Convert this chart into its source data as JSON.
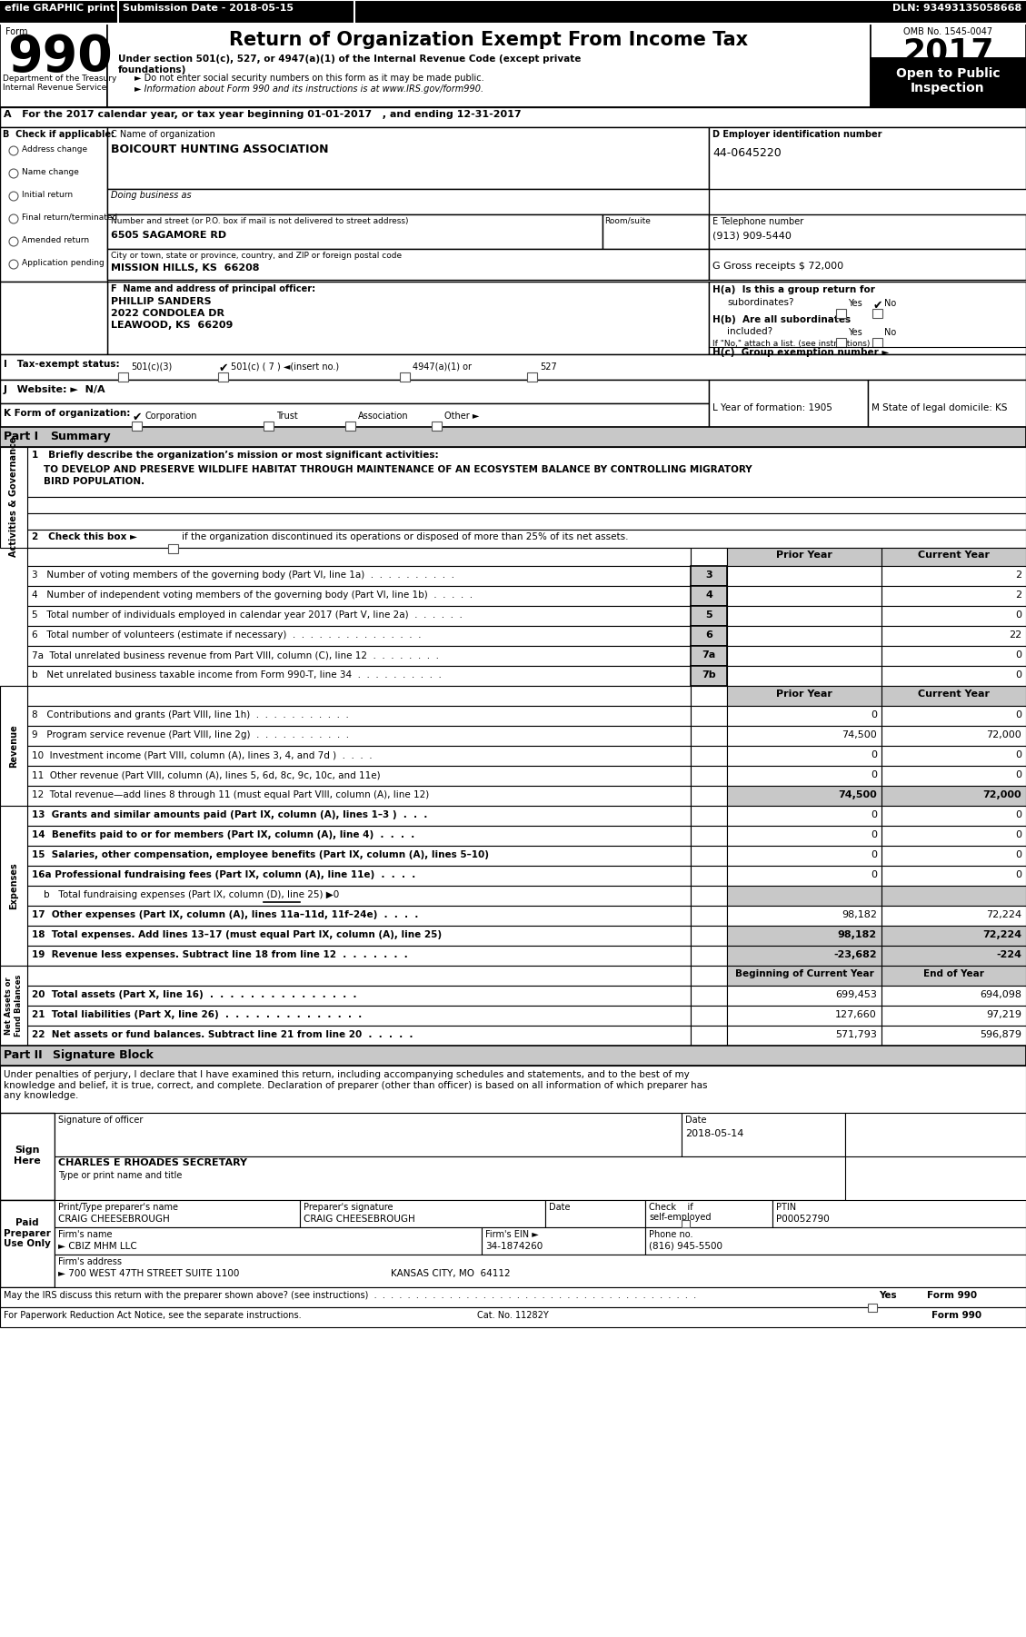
{
  "header_bar_text": [
    "efile GRAPHIC print",
    "Submission Date - 2018-05-15",
    "DLN: 93493135058668"
  ],
  "title": "Return of Organization Exempt From Income Tax",
  "omb": "OMB No. 1545-0047",
  "year": "2017",
  "open_to_public": "Open to Public\nInspection",
  "subtitle1": "Under section 501(c), 527, or 4947(a)(1) of the Internal Revenue Code (except private\nfoundations)",
  "subtitle2": "► Do not enter social security numbers on this form as it may be made public.",
  "subtitle3": "► Information about Form 990 and its instructions is at www.IRS.gov/form990.",
  "dept": "Department of the Treasury\nInternal Revenue Service",
  "section_a": "A   For the 2017 calendar year, or tax year beginning 01-01-2017   , and ending 12-31-2017",
  "org_name_label": "C Name of organization",
  "org_name": "BOICOURT HUNTING ASSOCIATION",
  "ein_label": "D Employer identification number",
  "ein": "44-0645220",
  "dba_label": "Doing business as",
  "address_label": "Number and street (or P.O. box if mail is not delivered to street address)",
  "room_label": "Room/suite",
  "address": "6505 SAGAMORE RD",
  "city_label": "City or town, state or province, country, and ZIP or foreign postal code",
  "city": "MISSION HILLS, KS  66208",
  "phone_label": "E Telephone number",
  "phone": "(913) 909-5440",
  "gross_label": "G Gross receipts $ 72,000",
  "principal_label": "F  Name and address of principal officer:",
  "principal_name": "PHILLIP SANDERS",
  "principal_addr1": "2022 CONDOLEA DR",
  "principal_addr2": "LEAWOOD, KS  66209",
  "check_applicable": "B  Check if applicable:",
  "check_items": [
    "Address change",
    "Name change",
    "Initial return",
    "Final return/terminated",
    "Amended return",
    "Application pending"
  ],
  "prior_year": "Prior Year",
  "current_year": "Current Year",
  "beg_year": "Beginning of Current Year",
  "end_year": "End of Year",
  "line1_text1": "TO DEVELOP AND PRESERVE WILDLIFE HABITAT THROUGH MAINTENANCE OF AN ECOSYSTEM BALANCE BY CONTROLLING MIGRATORY",
  "line1_text2": "BIRD POPULATION.",
  "line3_label": "3   Number of voting members of the governing body (Part VI, line 1a)  .  .  .  .  .  .  .  .  .  .",
  "line3_val": [
    "3",
    "2"
  ],
  "line4_label": "4   Number of independent voting members of the governing body (Part VI, line 1b)  .  .  .  .  .",
  "line4_val": [
    "4",
    "2"
  ],
  "line5_label": "5   Total number of individuals employed in calendar year 2017 (Part V, line 2a)  .  .  .  .  .  .",
  "line5_val": [
    "5",
    "0"
  ],
  "line6_label": "6   Total number of volunteers (estimate if necessary)  .  .  .  .  .  .  .  .  .  .  .  .  .  .  .",
  "line6_val": [
    "6",
    "22"
  ],
  "line7a_label": "7a  Total unrelated business revenue from Part VIII, column (C), line 12  .  .  .  .  .  .  .  .",
  "line7a_val": [
    "7a",
    "0"
  ],
  "line7b_label": "b   Net unrelated business taxable income from Form 990-T, line 34  .  .  .  .  .  .  .  .  .  .",
  "line7b_val": [
    "7b",
    "0"
  ],
  "line8_label": "8   Contributions and grants (Part VIII, line 1h)  .  .  .  .  .  .  .  .  .  .  .",
  "line8_val": [
    "0",
    "0"
  ],
  "line9_label": "9   Program service revenue (Part VIII, line 2g)  .  .  .  .  .  .  .  .  .  .  .",
  "line9_val": [
    "74,500",
    "72,000"
  ],
  "line10_label": "10  Investment income (Part VIII, column (A), lines 3, 4, and 7d )  .  .  .  .",
  "line10_val": [
    "0",
    "0"
  ],
  "line11_label": "11  Other revenue (Part VIII, column (A), lines 5, 6d, 8c, 9c, 10c, and 11e)",
  "line11_val": [
    "0",
    "0"
  ],
  "line12_label": "12  Total revenue—add lines 8 through 11 (must equal Part VIII, column (A), line 12)",
  "line12_val": [
    "74,500",
    "72,000"
  ],
  "line13_label": "13  Grants and similar amounts paid (Part IX, column (A), lines 1–3 )  .  .  .",
  "line13_val": [
    "0",
    "0"
  ],
  "line14_label": "14  Benefits paid to or for members (Part IX, column (A), line 4)  .  .  .  .",
  "line14_val": [
    "0",
    "0"
  ],
  "line15_label": "15  Salaries, other compensation, employee benefits (Part IX, column (A), lines 5–10)",
  "line15_val": [
    "0",
    "0"
  ],
  "line16a_label": "16a Professional fundraising fees (Part IX, column (A), line 11e)  .  .  .  .",
  "line16a_val": [
    "0",
    "0"
  ],
  "line16b_label": "b   Total fundraising expenses (Part IX, column (D), line 25) ▶0",
  "line17_label": "17  Other expenses (Part IX, column (A), lines 11a–11d, 11f–24e)  .  .  .  .",
  "line17_val": [
    "98,182",
    "72,224"
  ],
  "line18_label": "18  Total expenses. Add lines 13–17 (must equal Part IX, column (A), line 25)",
  "line18_val": [
    "98,182",
    "72,224"
  ],
  "line19_label": "19  Revenue less expenses. Subtract line 18 from line 12  .  .  .  .  .  .  .",
  "line19_val": [
    "-23,682",
    "-224"
  ],
  "line20_label": "20  Total assets (Part X, line 16)  .  .  .  .  .  .  .  .  .  .  .  .  .  .  .",
  "line20_val": [
    "699,453",
    "694,098"
  ],
  "line21_label": "21  Total liabilities (Part X, line 26)  .  .  .  .  .  .  .  .  .  .  .  .  .  .",
  "line21_val": [
    "127,660",
    "97,219"
  ],
  "line22_label": "22  Net assets or fund balances. Subtract line 21 from line 20  .  .  .  .  .",
  "line22_val": [
    "571,793",
    "596,879"
  ],
  "sig_text": "Under penalties of perjury, I declare that I have examined this return, including accompanying schedules and statements, and to the best of my\nknowledge and belief, it is true, correct, and complete. Declaration of preparer (other than officer) is based on all information of which preparer has\nany knowledge.",
  "sig_date": "2018-05-14",
  "sig_name": "CHARLES E RHOADES SECRETARY",
  "preparer_name": "CRAIG CHEESEBROUGH",
  "preparer_sig": "CRAIG CHEESEBROUGH",
  "ptin": "P00052790",
  "firm_name": "► CBIZ MHM LLC",
  "firm_ein": "34-1874260",
  "firm_addr": "► 700 WEST 47TH STREET SUITE 1100",
  "firm_phone": "(816) 945-5500",
  "firm_city": "KANSAS CITY, MO  64112",
  "cat_label": "Cat. No. 11282Y",
  "paperwork_label": "For Paperwork Reduction Act Notice, see the separate instructions."
}
